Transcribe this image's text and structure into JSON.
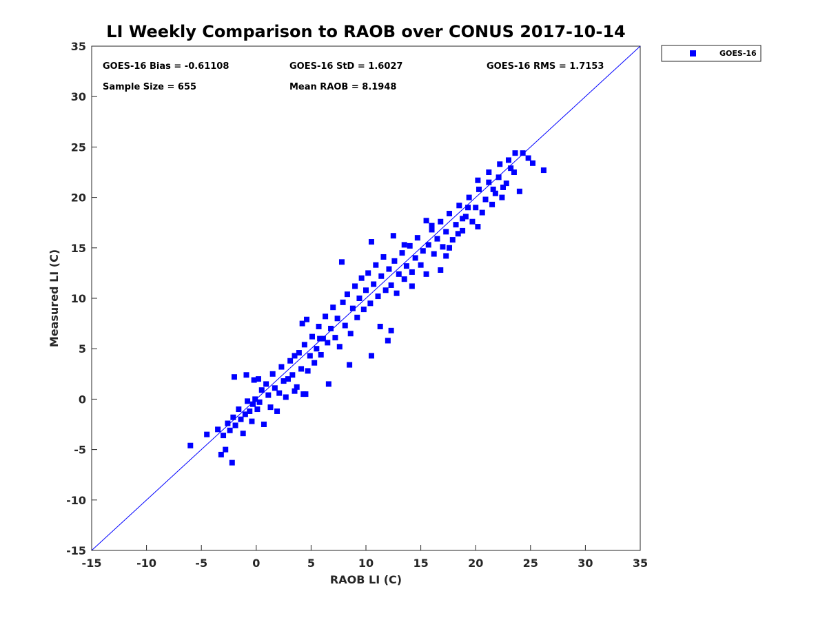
{
  "chart_data": {
    "type": "scatter",
    "title": "LI Weekly Comparison to RAOB over CONUS 2017-10-14",
    "xlabel": "RAOB LI (C)",
    "ylabel": "Measured LI (C)",
    "xlim": [
      -15,
      35
    ],
    "ylim": [
      -15,
      35
    ],
    "xticks": [
      -15,
      -10,
      -5,
      0,
      5,
      10,
      15,
      20,
      25,
      30,
      35
    ],
    "yticks": [
      -15,
      -10,
      -5,
      0,
      5,
      10,
      15,
      20,
      25,
      30,
      35
    ],
    "grid": false,
    "legend_position": "outside-top-right",
    "marker_color": "#0000ff",
    "reference_line": {
      "label": "1:1 line",
      "from": [
        -15,
        -15
      ],
      "to": [
        35,
        35
      ],
      "color": "#0000ff"
    },
    "stats": {
      "bias": "GOES-16 Bias = -0.61108",
      "std": "GOES-16 StD = 1.6027",
      "rms": "GOES-16 RMS = 1.7153",
      "sample_size": "Sample Size = 655",
      "mean_raob": "Mean RAOB = 8.1948"
    },
    "series": [
      {
        "name": "GOES-16",
        "marker": "square",
        "points": [
          [
            -6.0,
            -4.6
          ],
          [
            -4.5,
            -3.5
          ],
          [
            -3.2,
            -5.5
          ],
          [
            -2.8,
            -5.0
          ],
          [
            -2.2,
            -6.3
          ],
          [
            -2.0,
            2.2
          ],
          [
            -0.9,
            2.4
          ],
          [
            -0.3,
            -0.5
          ],
          [
            -0.2,
            1.9
          ],
          [
            0.2,
            2.0
          ],
          [
            3.5,
            4.3
          ],
          [
            3.5,
            0.8
          ],
          [
            4.2,
            7.5
          ],
          [
            4.3,
            0.5
          ],
          [
            4.5,
            0.5
          ],
          [
            4.6,
            7.9
          ],
          [
            5.8,
            6.0
          ],
          [
            6.6,
            1.5
          ],
          [
            7.8,
            13.6
          ],
          [
            8.5,
            3.4
          ],
          [
            10.5,
            4.3
          ],
          [
            10.5,
            15.6
          ],
          [
            11.3,
            7.2
          ],
          [
            12.0,
            5.8
          ],
          [
            12.3,
            6.8
          ],
          [
            12.5,
            16.2
          ],
          [
            13.5,
            15.3
          ],
          [
            14.2,
            11.2
          ],
          [
            15.5,
            17.7
          ],
          [
            16.0,
            17.2
          ],
          [
            16.8,
            12.8
          ],
          [
            17.3,
            14.2
          ],
          [
            19.3,
            19.0
          ],
          [
            20.2,
            17.1
          ],
          [
            20.2,
            21.7
          ],
          [
            21.2,
            22.5
          ],
          [
            22.5,
            21.0
          ],
          [
            23.0,
            23.7
          ],
          [
            23.5,
            22.5
          ],
          [
            24.0,
            20.6
          ],
          [
            24.3,
            24.4
          ],
          [
            24.8,
            23.9
          ],
          [
            25.2,
            23.4
          ],
          [
            26.2,
            22.7
          ],
          [
            23.6,
            24.4
          ],
          [
            22.2,
            23.3
          ],
          [
            21.6,
            20.8
          ],
          [
            18.8,
            17.9
          ],
          [
            18.4,
            16.4
          ],
          [
            17.6,
            15.0
          ],
          [
            -3.5,
            -3.0
          ],
          [
            -3.0,
            -3.6
          ],
          [
            -2.6,
            -2.4
          ],
          [
            -2.4,
            -3.1
          ],
          [
            -2.1,
            -1.8
          ],
          [
            -1.9,
            -2.6
          ],
          [
            -1.6,
            -1.0
          ],
          [
            -1.4,
            -2.0
          ],
          [
            -1.2,
            -3.4
          ],
          [
            -1.0,
            -1.5
          ],
          [
            -0.8,
            -0.2
          ],
          [
            -0.6,
            -1.2
          ],
          [
            -0.4,
            -2.2
          ],
          [
            -0.1,
            0.0
          ],
          [
            0.1,
            -1.0
          ],
          [
            0.3,
            -0.3
          ],
          [
            0.5,
            0.9
          ],
          [
            0.7,
            -2.5
          ],
          [
            0.9,
            1.5
          ],
          [
            1.1,
            0.4
          ],
          [
            1.3,
            -0.8
          ],
          [
            1.5,
            2.5
          ],
          [
            1.7,
            1.1
          ],
          [
            1.9,
            -1.2
          ],
          [
            2.1,
            0.6
          ],
          [
            2.3,
            3.2
          ],
          [
            2.5,
            1.8
          ],
          [
            2.7,
            0.2
          ],
          [
            2.9,
            2.0
          ],
          [
            3.1,
            3.8
          ],
          [
            3.3,
            2.4
          ],
          [
            3.7,
            1.2
          ],
          [
            3.9,
            4.6
          ],
          [
            4.1,
            3.0
          ],
          [
            4.4,
            5.4
          ],
          [
            4.7,
            2.8
          ],
          [
            4.9,
            4.3
          ],
          [
            5.1,
            6.2
          ],
          [
            5.3,
            3.6
          ],
          [
            5.5,
            5.0
          ],
          [
            5.7,
            7.2
          ],
          [
            5.9,
            4.4
          ],
          [
            6.1,
            6.0
          ],
          [
            6.3,
            8.2
          ],
          [
            6.5,
            5.6
          ],
          [
            6.8,
            7.0
          ],
          [
            7.0,
            9.1
          ],
          [
            7.2,
            6.1
          ],
          [
            7.4,
            8.0
          ],
          [
            7.6,
            5.2
          ],
          [
            7.9,
            9.6
          ],
          [
            8.1,
            7.3
          ],
          [
            8.3,
            10.4
          ],
          [
            8.6,
            6.5
          ],
          [
            8.8,
            9.0
          ],
          [
            9.0,
            11.2
          ],
          [
            9.2,
            8.1
          ],
          [
            9.4,
            10.0
          ],
          [
            9.6,
            12.0
          ],
          [
            9.8,
            8.9
          ],
          [
            10.0,
            10.8
          ],
          [
            10.2,
            12.5
          ],
          [
            10.4,
            9.5
          ],
          [
            10.7,
            11.4
          ],
          [
            10.9,
            13.3
          ],
          [
            11.1,
            10.2
          ],
          [
            11.4,
            12.2
          ],
          [
            11.6,
            14.1
          ],
          [
            11.8,
            10.8
          ],
          [
            12.1,
            12.9
          ],
          [
            12.3,
            11.3
          ],
          [
            12.6,
            13.7
          ],
          [
            12.8,
            10.5
          ],
          [
            13.0,
            12.4
          ],
          [
            13.3,
            14.5
          ],
          [
            13.5,
            11.9
          ],
          [
            13.7,
            13.2
          ],
          [
            14.0,
            15.2
          ],
          [
            14.2,
            12.6
          ],
          [
            14.5,
            14.0
          ],
          [
            14.7,
            16.0
          ],
          [
            15.0,
            13.3
          ],
          [
            15.2,
            14.7
          ],
          [
            15.5,
            12.4
          ],
          [
            15.7,
            15.3
          ],
          [
            16.0,
            16.8
          ],
          [
            16.2,
            14.4
          ],
          [
            16.5,
            15.9
          ],
          [
            16.8,
            17.6
          ],
          [
            17.0,
            15.1
          ],
          [
            17.3,
            16.6
          ],
          [
            17.6,
            18.4
          ],
          [
            17.9,
            15.8
          ],
          [
            18.2,
            17.3
          ],
          [
            18.5,
            19.2
          ],
          [
            18.8,
            16.7
          ],
          [
            19.1,
            18.1
          ],
          [
            19.4,
            20.0
          ],
          [
            19.7,
            17.6
          ],
          [
            20.0,
            19.0
          ],
          [
            20.3,
            20.8
          ],
          [
            20.6,
            18.5
          ],
          [
            20.9,
            19.8
          ],
          [
            21.2,
            21.5
          ],
          [
            21.5,
            19.3
          ],
          [
            21.8,
            20.4
          ],
          [
            22.1,
            22.0
          ],
          [
            22.4,
            20.0
          ],
          [
            22.8,
            21.4
          ],
          [
            23.2,
            22.9
          ]
        ]
      }
    ]
  }
}
